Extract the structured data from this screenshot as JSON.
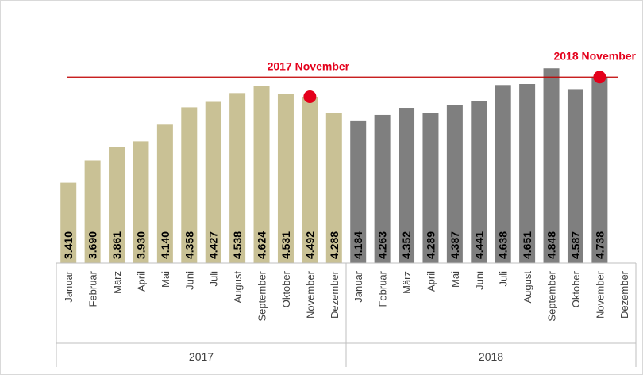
{
  "chart_data": {
    "type": "bar",
    "series": [
      {
        "group": "2017",
        "color": "#c9c195",
        "categories": [
          "Januar",
          "Februar",
          "März",
          "April",
          "Mai",
          "Juni",
          "Juli",
          "August",
          "September",
          "Oktober",
          "November",
          "Dezember"
        ],
        "values": [
          3410,
          3690,
          3861,
          3930,
          4140,
          4358,
          4427,
          4538,
          4624,
          4531,
          4492,
          4288
        ],
        "labels": [
          "3.410",
          "3.690",
          "3.861",
          "3.930",
          "4.140",
          "4.358",
          "4.427",
          "4.538",
          "4.624",
          "4.531",
          "4.492",
          "4.288"
        ]
      },
      {
        "group": "2018",
        "color": "#7f7f7f",
        "categories": [
          "Januar",
          "Februar",
          "März",
          "April",
          "Mai",
          "Juni",
          "Juli",
          "August",
          "September",
          "Oktober",
          "November",
          "Dezember"
        ],
        "values": [
          4184,
          4263,
          4352,
          4289,
          4387,
          4441,
          4638,
          4651,
          4848,
          4587,
          4738,
          null
        ],
        "labels": [
          "4.184",
          "4.263",
          "4.352",
          "4.289",
          "4.387",
          "4.441",
          "4.638",
          "4.651",
          "4.848",
          "4.587",
          "4.738",
          ""
        ]
      }
    ],
    "ylim": [
      2400,
      4900
    ],
    "reference_line": {
      "value": 4738,
      "color": "#c00000"
    },
    "annotations": [
      {
        "text": "2017 November",
        "group": "2017",
        "month_index": 10,
        "value": 4492,
        "color": "#e4001b"
      },
      {
        "text": "2018 November",
        "group": "2018",
        "month_index": 10,
        "value": 4738,
        "color": "#e4001b"
      }
    ],
    "grid": false,
    "legend": "none"
  }
}
